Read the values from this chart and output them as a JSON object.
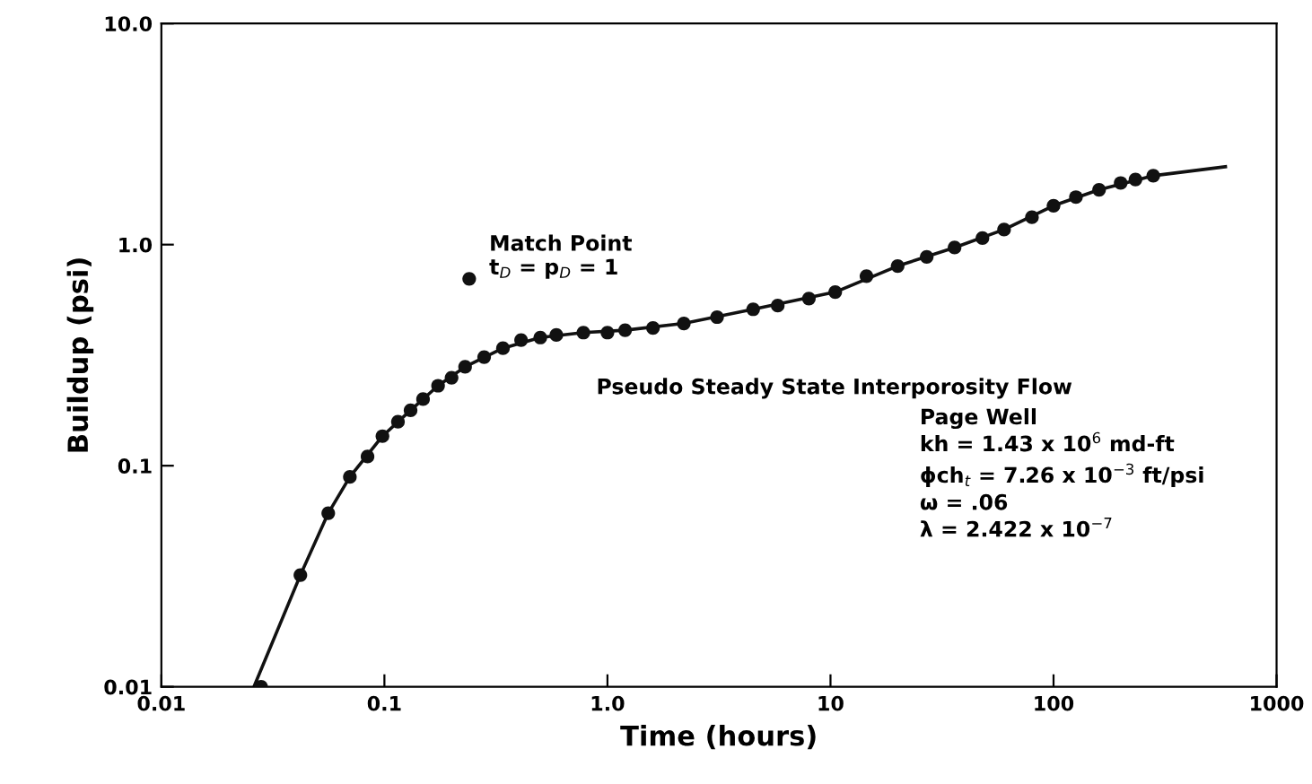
{
  "chart_data": {
    "type": "scatter",
    "xlabel": "Time (hours)",
    "ylabel": "Buildup (psi)",
    "log": "xy",
    "xlim": [
      0.01,
      1000
    ],
    "ylim": [
      0.01,
      10
    ],
    "xticks": [
      0.01,
      0.1,
      {
        "value": 1,
        "label": "1.0"
      },
      10,
      100,
      1000
    ],
    "yticks": [
      0.01,
      0.1,
      {
        "value": 1,
        "label": "1.0"
      },
      {
        "value": 10,
        "label": "10.0"
      }
    ],
    "grid": false,
    "series": [
      {
        "marker": "circle",
        "color": "#111111",
        "x": [
          0.028,
          0.042,
          0.056,
          0.07,
          0.084,
          0.098,
          0.115,
          0.131,
          0.149,
          0.174,
          0.2,
          0.23,
          0.28,
          0.34,
          0.41,
          0.5,
          0.59,
          0.78,
          1.0,
          1.2,
          1.6,
          2.2,
          3.1,
          4.5,
          5.8,
          8.0,
          10.5,
          14.5,
          20,
          27,
          36,
          48,
          60,
          80,
          100,
          126,
          160,
          200,
          233,
          280
        ],
        "values": [
          0.01,
          0.032,
          0.061,
          0.089,
          0.11,
          0.136,
          0.158,
          0.178,
          0.2,
          0.23,
          0.25,
          0.28,
          0.31,
          0.34,
          0.37,
          0.38,
          0.39,
          0.4,
          0.4,
          0.41,
          0.42,
          0.44,
          0.47,
          0.51,
          0.53,
          0.57,
          0.61,
          0.72,
          0.8,
          0.88,
          0.97,
          1.07,
          1.17,
          1.33,
          1.5,
          1.64,
          1.77,
          1.9,
          1.97,
          2.05
        ]
      },
      {
        "type": "line",
        "color": "#111111",
        "x": [
          0.026,
          0.042,
          0.056,
          0.07,
          0.098,
          0.131,
          0.174,
          0.23,
          0.34,
          0.5,
          0.78,
          1.2,
          2.2,
          4.5,
          10.5,
          20,
          36,
          60,
          100,
          160,
          280,
          590
        ],
        "values": [
          0.01,
          0.032,
          0.061,
          0.089,
          0.136,
          0.178,
          0.23,
          0.28,
          0.34,
          0.38,
          0.4,
          0.41,
          0.44,
          0.51,
          0.61,
          0.8,
          0.97,
          1.17,
          1.5,
          1.77,
          2.05,
          2.25
        ]
      }
    ],
    "annotations": [
      {
        "text": "Match Point\nt$_{D}$ = p$_{D}$ = 1",
        "x": 0.24,
        "y": 0.7
      },
      "Pseudo Steady State Interporosity Flow",
      "Page Well\nkh = 1.43 x 10$^{6}$ md-ft\nϕch$_{t}$ = 7.26 x 10$^{−3}$ ft/psi\nω = .06\nλ = 2.422 x 10$^{−7}$"
    ]
  }
}
